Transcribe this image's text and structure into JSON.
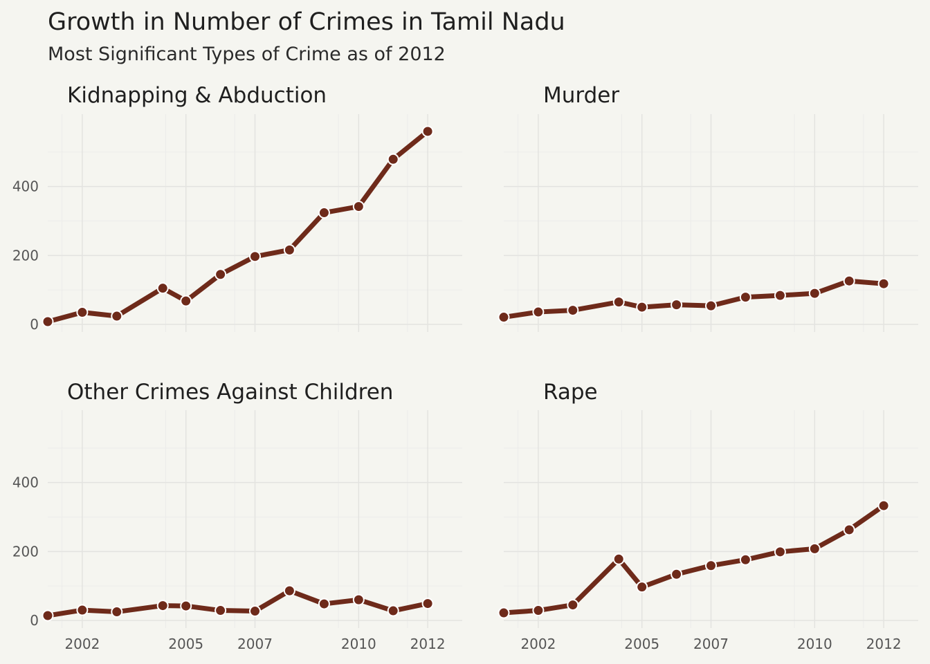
{
  "title": "Growth in Number of Crimes in Tamil Nadu",
  "subtitle": "Most Significant Types of Crime as of 2012",
  "colors": {
    "background": "#f5f5f0",
    "line": "#6e2a1a",
    "point_outline": "#ffffff",
    "grid_major": "#e3e3e0",
    "grid_minor": "#ececea"
  },
  "chart_data": {
    "type": "line",
    "layout": "facet-2x2",
    "x_tick_labels": [
      "2002",
      "2005",
      "2007",
      "2010",
      "2012"
    ],
    "y_tick_labels": [
      "0",
      "200",
      "400"
    ],
    "xlim": [
      "2001-01-01",
      "2012-12-31"
    ],
    "ylim": [
      0,
      590
    ],
    "grid": true,
    "x": [
      "2001-01-01",
      "2002-01-01",
      "2003-01-01",
      "2004-05-01",
      "2005-01-01",
      "2006-01-01",
      "2007-01-01",
      "2008-01-01",
      "2009-01-01",
      "2010-01-01",
      "2011-01-01",
      "2012-01-01"
    ],
    "panels": [
      {
        "name": "Kidnapping & Abduction",
        "values": [
          8,
          35,
          24,
          105,
          68,
          145,
          197,
          216,
          324,
          342,
          479,
          560
        ]
      },
      {
        "name": "Murder",
        "values": [
          21,
          36,
          41,
          65,
          50,
          57,
          54,
          79,
          84,
          90,
          126,
          118
        ]
      },
      {
        "name": "Other Crimes Against Children",
        "values": [
          14,
          30,
          25,
          43,
          42,
          29,
          27,
          86,
          48,
          60,
          28,
          49
        ]
      },
      {
        "name": "Rape",
        "values": [
          22,
          29,
          45,
          178,
          97,
          134,
          159,
          176,
          199,
          208,
          263,
          333
        ]
      }
    ]
  }
}
